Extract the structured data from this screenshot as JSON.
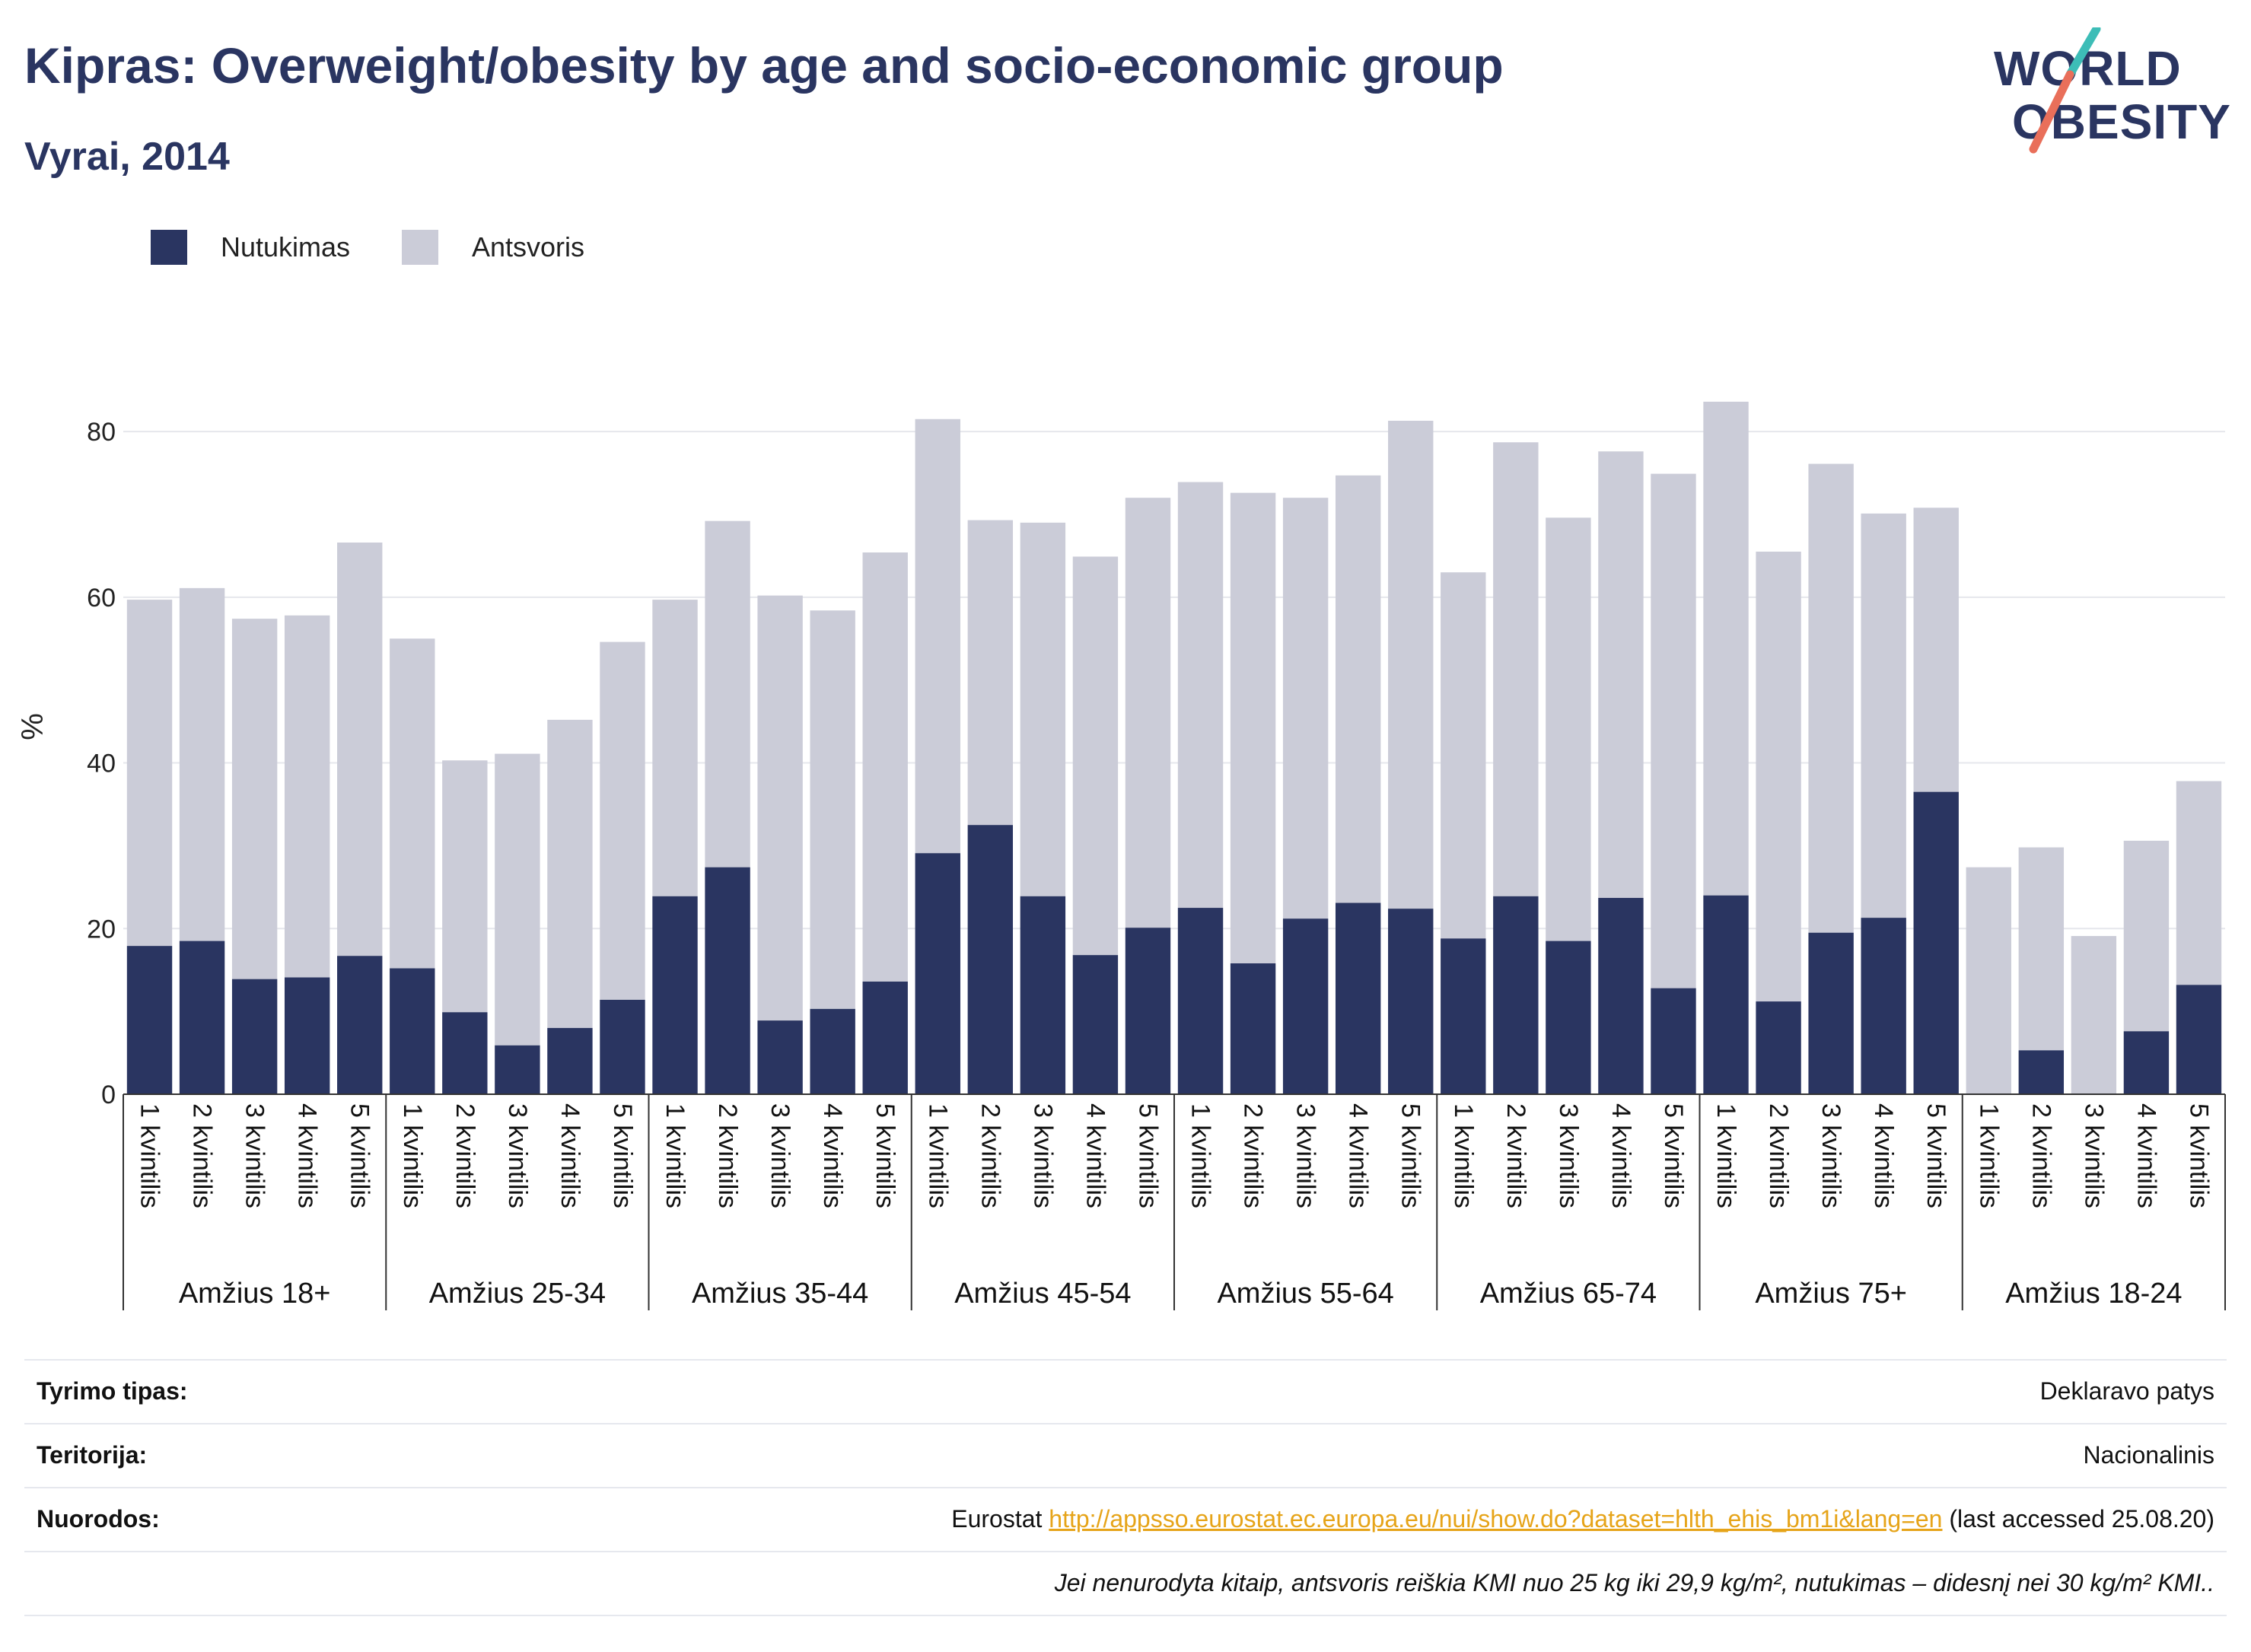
{
  "header": {
    "title": "Kipras: Overweight/obesity by age and socio-economic group",
    "subtitle": "Vyrai, 2014"
  },
  "logo": {
    "line1": "WORLD",
    "line2": "OBESITY"
  },
  "legend": [
    {
      "label": "Nutukimas",
      "color": "#2a3561"
    },
    {
      "label": "Antsvoris",
      "color": "#cbccd8"
    }
  ],
  "chart_data": {
    "type": "bar",
    "stacked": true,
    "ylabel": "%",
    "ylim": [
      0,
      88
    ],
    "yticks": [
      0,
      20,
      40,
      60,
      80
    ],
    "grid": true,
    "legend_position": "top-left",
    "groups": [
      "Amžius 18+",
      "Amžius 25-34",
      "Amžius 35-44",
      "Amžius 45-54",
      "Amžius 55-64",
      "Amžius 65-74",
      "Amžius 75+",
      "Amžius 18-24"
    ],
    "categories": [
      "1 kvintilis",
      "2 kvintilis",
      "3 kvintilis",
      "4 kvintilis",
      "5 kvintilis"
    ],
    "series": [
      {
        "name": "Nutukimas",
        "color": "#2a3561",
        "values": [
          [
            17.9,
            18.5,
            13.9,
            14.1,
            16.7
          ],
          [
            15.2,
            9.9,
            5.9,
            8.0,
            11.4
          ],
          [
            23.9,
            27.4,
            8.9,
            10.3,
            13.6
          ],
          [
            29.1,
            32.5,
            23.9,
            16.8,
            20.1
          ],
          [
            22.5,
            15.8,
            21.2,
            23.1,
            22.4
          ],
          [
            18.8,
            23.9,
            18.5,
            23.7,
            12.8
          ],
          [
            24.0,
            11.2,
            19.5,
            21.3,
            36.5
          ],
          [
            0.0,
            5.3,
            0.0,
            7.6,
            13.2
          ]
        ]
      },
      {
        "name": "Antsvoris",
        "color": "#cbccd8",
        "values": [
          [
            41.8,
            42.6,
            43.5,
            43.7,
            49.9
          ],
          [
            39.8,
            30.4,
            35.2,
            37.2,
            43.2
          ],
          [
            35.8,
            41.8,
            51.3,
            48.1,
            51.8
          ],
          [
            52.4,
            36.8,
            45.1,
            48.1,
            51.9
          ],
          [
            51.4,
            56.8,
            50.8,
            51.6,
            58.9
          ],
          [
            44.2,
            54.8,
            51.1,
            53.9,
            62.1
          ],
          [
            59.6,
            54.3,
            56.6,
            48.8,
            34.3
          ],
          [
            27.4,
            24.5,
            19.1,
            23.0,
            24.6
          ]
        ]
      }
    ]
  },
  "footer": {
    "rows": [
      {
        "key": "Tyrimo tipas:",
        "value": "Deklaravo patys"
      },
      {
        "key": "Teritorija:",
        "value": "Nacionalinis"
      },
      {
        "key": "Nuorodos:",
        "prefix": "Eurostat ",
        "link": "http://appsso.eurostat.ec.europa.eu/nui/show.do?dataset=hlth_ehis_bm1i&lang=en",
        "suffix": " (last accessed 25.08.20)"
      }
    ],
    "note": "Jei nenurodyta kitaip, antsvoris reiškia KMI nuo 25 kg iki 29,9 kg/m², nutukimas – didesnį nei 30 kg/m² KMI.."
  }
}
